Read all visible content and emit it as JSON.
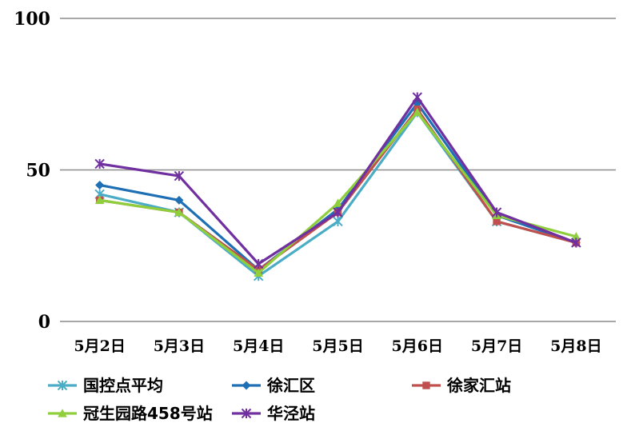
{
  "chart_data": {
    "type": "line",
    "categories": [
      "5月2日",
      "5月3日",
      "5月4日",
      "5月5日",
      "5月6日",
      "5月7日",
      "5月8日"
    ],
    "ylim": [
      0,
      100
    ],
    "y_ticks": [
      0,
      50,
      100
    ],
    "grid": "horizontal",
    "legend_position": "bottom",
    "series": [
      {
        "name": "国控点平均",
        "color": "#4BACC6",
        "marker": "asterisk",
        "values": [
          42,
          36,
          15,
          33,
          69,
          33,
          26
        ]
      },
      {
        "name": "徐汇区",
        "color": "#1F6FB5",
        "marker": "diamond",
        "values": [
          45,
          40,
          17,
          37,
          72,
          35,
          26
        ]
      },
      {
        "name": "徐家汇站",
        "color": "#C0504D",
        "marker": "square",
        "values": [
          40,
          36,
          17,
          36,
          70,
          33,
          26
        ]
      },
      {
        "name": "冠生园路458号站",
        "color": "#8FCF3C",
        "marker": "triangle",
        "values": [
          40,
          36,
          16,
          39,
          69,
          35,
          28
        ]
      },
      {
        "name": "华泾站",
        "color": "#7030A0",
        "marker": "star",
        "values": [
          52,
          48,
          19,
          36,
          74,
          36,
          26
        ]
      }
    ]
  }
}
